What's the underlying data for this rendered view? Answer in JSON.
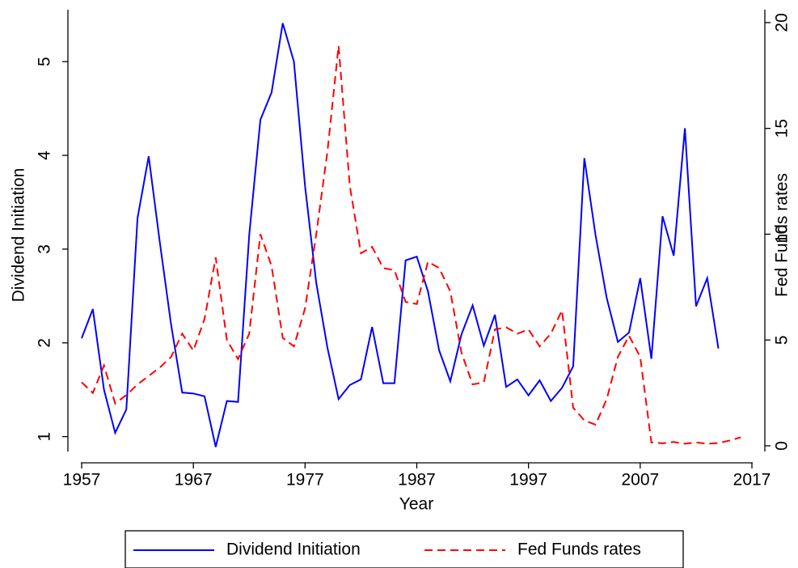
{
  "chart_data": {
    "type": "line",
    "x_label": "Year",
    "y_label": "Dividend Initiation",
    "y2_label": "Fed Funds rates",
    "xlim": [
      1957,
      2017
    ],
    "xticks": [
      1957,
      1967,
      1977,
      1987,
      1997,
      2007,
      2017
    ],
    "ylim": [
      0.85,
      5.45
    ],
    "yticks": [
      1,
      2,
      3,
      4,
      5
    ],
    "y2lim": [
      -0.23,
      20.15
    ],
    "y2ticks": [
      0,
      5,
      10,
      15,
      20
    ],
    "legend": "bottom",
    "series": [
      {
        "name": "Dividend Initiation",
        "color": "#0000ff",
        "dash": "solid",
        "x": [
          1957,
          1958,
          1959,
          1960,
          1961,
          1962,
          1963,
          1964,
          1965,
          1966,
          1967,
          1968,
          1969,
          1970,
          1971,
          1972,
          1973,
          1974,
          1975,
          1976,
          1977,
          1978,
          1979,
          1980,
          1981,
          1982,
          1983,
          1984,
          1985,
          1986,
          1987,
          1988,
          1989,
          1990,
          1991,
          1992,
          1993,
          1994,
          1995,
          1996,
          1997,
          1998,
          1999,
          2000,
          2001,
          2002,
          2003,
          2004,
          2005,
          2006,
          2007,
          2008,
          2009,
          2010,
          2011,
          2012,
          2013,
          2014
        ],
        "values": [
          2.05,
          2.36,
          1.5,
          1.04,
          1.29,
          3.33,
          3.99,
          3.07,
          2.2,
          1.47,
          1.46,
          1.43,
          0.89,
          1.38,
          1.37,
          3.15,
          4.38,
          4.67,
          5.41,
          5.0,
          3.67,
          2.64,
          1.95,
          1.4,
          1.55,
          1.61,
          2.17,
          1.57,
          1.57,
          2.88,
          2.92,
          2.55,
          1.92,
          1.59,
          2.09,
          2.4,
          1.97,
          2.3,
          1.53,
          1.61,
          1.44,
          1.6,
          1.38,
          1.52,
          1.75,
          3.97,
          3.15,
          2.48,
          2.01,
          2.11,
          2.69,
          1.83,
          3.35,
          2.93,
          4.29,
          2.39,
          2.69,
          1.94
        ]
      },
      {
        "name": "Fed Funds rates",
        "color": "#ff0000",
        "dash": "dashed",
        "axis": "y2",
        "x": [
          1957,
          1958,
          1959,
          1960,
          1961,
          1962,
          1963,
          1964,
          1965,
          1966,
          1967,
          1968,
          1969,
          1970,
          1971,
          1972,
          1973,
          1974,
          1975,
          1976,
          1977,
          1978,
          1979,
          1980,
          1981,
          1982,
          1983,
          1984,
          1985,
          1986,
          1987,
          1988,
          1989,
          1990,
          1991,
          1992,
          1993,
          1994,
          1995,
          1996,
          1997,
          1998,
          1999,
          2000,
          2001,
          2002,
          2003,
          2004,
          2005,
          2006,
          2007,
          2008,
          2009,
          2010,
          2011,
          2012,
          2013,
          2014,
          2015,
          2016
        ],
        "values": [
          3.0,
          2.5,
          3.8,
          2.0,
          2.4,
          2.9,
          3.3,
          3.7,
          4.2,
          5.3,
          4.5,
          6.0,
          8.9,
          5.0,
          4.1,
          5.3,
          10.0,
          8.5,
          5.1,
          4.7,
          6.5,
          10.0,
          13.9,
          18.9,
          12.3,
          9.1,
          9.4,
          8.4,
          8.3,
          6.8,
          6.7,
          8.7,
          8.4,
          7.3,
          4.4,
          2.9,
          3.0,
          5.5,
          5.6,
          5.3,
          5.5,
          4.7,
          5.3,
          6.4,
          1.8,
          1.2,
          1.0,
          2.2,
          4.2,
          5.2,
          4.2,
          0.16,
          0.12,
          0.18,
          0.1,
          0.16,
          0.1,
          0.13,
          0.25,
          0.4
        ]
      }
    ]
  }
}
